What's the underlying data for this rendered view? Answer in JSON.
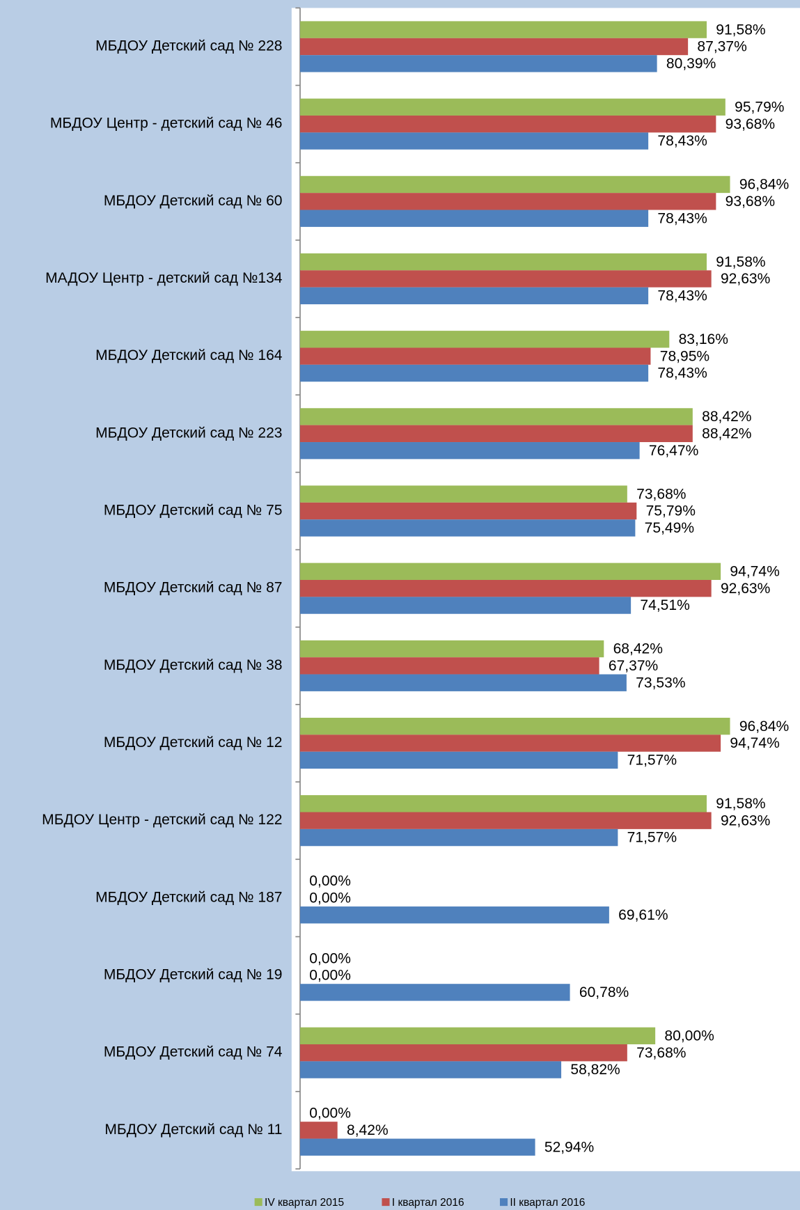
{
  "chart_data": {
    "type": "barh",
    "categories": [
      "МБДОУ Детский сад № 228",
      "МБДОУ Центр - детский сад № 46",
      "МБДОУ Детский сад № 60",
      "МАДОУ Центр - детский сад №134",
      "МБДОУ Детский сад № 164",
      "МБДОУ Детский сад № 223",
      "МБДОУ Детский сад № 75",
      "МБДОУ Детский сад № 87",
      "МБДОУ Детский сад № 38",
      "МБДОУ Детский сад № 12",
      "МБДОУ Центр - детский сад № 122",
      "МБДОУ Детский сад № 187",
      "МБДОУ Детский сад № 19",
      "МБДОУ Детский сад № 74",
      "МБДОУ Детский сад № 11"
    ],
    "xlim": [
      0,
      100
    ],
    "series": [
      {
        "name": "IV квартал 2015",
        "color": "#9bbb59",
        "values": [
          91.58,
          95.79,
          96.84,
          91.58,
          83.16,
          88.42,
          73.68,
          94.74,
          68.42,
          96.84,
          91.58,
          0,
          0,
          80.0,
          0
        ],
        "value_labels": [
          "91,58%",
          "95,79%",
          "96,84%",
          "91,58%",
          "83,16%",
          "88,42%",
          "73,68%",
          "94,74%",
          "68,42%",
          "96,84%",
          "91,58%",
          "0,00%",
          "0,00%",
          "80,00%",
          "0,00%"
        ]
      },
      {
        "name": "I квартал 2016",
        "color": "#c0504d",
        "values": [
          87.37,
          93.68,
          93.68,
          92.63,
          78.95,
          88.42,
          75.79,
          92.63,
          67.37,
          94.74,
          92.63,
          0,
          0,
          73.68,
          8.42
        ],
        "value_labels": [
          "87,37%",
          "93,68%",
          "93,68%",
          "92,63%",
          "78,95%",
          "88,42%",
          "75,79%",
          "92,63%",
          "67,37%",
          "94,74%",
          "92,63%",
          "0,00%",
          "0,00%",
          "73,68%",
          "8,42%"
        ]
      },
      {
        "name": "II квартал 2016",
        "color": "#4f81bd",
        "values": [
          80.39,
          78.43,
          78.43,
          78.43,
          78.43,
          76.47,
          75.49,
          74.51,
          73.53,
          71.57,
          71.57,
          69.61,
          60.78,
          58.82,
          52.94
        ],
        "value_labels": [
          "80,39%",
          "78,43%",
          "78,43%",
          "78,43%",
          "78,43%",
          "76,47%",
          "75,49%",
          "74,51%",
          "73,53%",
          "71,57%",
          "71,57%",
          "69,61%",
          "60,78%",
          "58,82%",
          "52,94%"
        ]
      }
    ]
  }
}
